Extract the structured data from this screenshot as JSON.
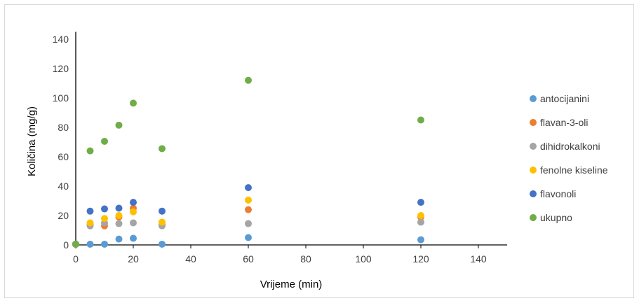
{
  "chart_data": {
    "type": "scatter",
    "xlabel": "Vrijeme (min)",
    "ylabel": "Količina (mg/g)",
    "xlim": [
      0,
      150
    ],
    "ylim": [
      0,
      150
    ],
    "xticks": [
      "0",
      "20",
      "40",
      "60",
      "80",
      "100",
      "120",
      "140"
    ],
    "yticks": [
      "0",
      "20",
      "40",
      "60",
      "80",
      "100",
      "120",
      "140"
    ],
    "grid": false,
    "legend": "right",
    "series": [
      {
        "name": "antocijanini",
        "color": "#5B9BD5",
        "points": [
          [
            0,
            0.5
          ],
          [
            5,
            0.5
          ],
          [
            10,
            0.5
          ],
          [
            15,
            4
          ],
          [
            20,
            4.5
          ],
          [
            30,
            0.5
          ],
          [
            60,
            5
          ],
          [
            120,
            3.5
          ]
        ]
      },
      {
        "name": "flavan-3-oli",
        "color": "#ED7D31",
        "points": [
          [
            0,
            0.5
          ],
          [
            5,
            14
          ],
          [
            10,
            13
          ],
          [
            15,
            19
          ],
          [
            20,
            25
          ],
          [
            30,
            14
          ],
          [
            60,
            24
          ],
          [
            120,
            19
          ]
        ]
      },
      {
        "name": "dihidrokalkoni",
        "color": "#A5A5A5",
        "points": [
          [
            0,
            0.5
          ],
          [
            5,
            13
          ],
          [
            10,
            15
          ],
          [
            15,
            14.5
          ],
          [
            20,
            15
          ],
          [
            30,
            13
          ],
          [
            60,
            14.5
          ],
          [
            120,
            15.5
          ]
        ]
      },
      {
        "name": "fenolne kiseline",
        "color": "#FFC000",
        "points": [
          [
            0,
            0.5
          ],
          [
            5,
            15
          ],
          [
            10,
            18
          ],
          [
            15,
            20
          ],
          [
            20,
            22.5
          ],
          [
            30,
            15.5
          ],
          [
            60,
            30.5
          ],
          [
            120,
            20
          ]
        ]
      },
      {
        "name": "flavonoli",
        "color": "#4472C4",
        "points": [
          [
            0,
            0.5
          ],
          [
            5,
            23
          ],
          [
            10,
            24.5
          ],
          [
            15,
            25
          ],
          [
            20,
            29
          ],
          [
            30,
            23
          ],
          [
            60,
            39
          ],
          [
            120,
            29
          ]
        ]
      },
      {
        "name": "ukupno",
        "color": "#70AD47",
        "points": [
          [
            0,
            0.5
          ],
          [
            5,
            64
          ],
          [
            10,
            70.5
          ],
          [
            15,
            81.5
          ],
          [
            20,
            96.5
          ],
          [
            30,
            65.5
          ],
          [
            60,
            112
          ],
          [
            120,
            85
          ]
        ]
      }
    ]
  }
}
